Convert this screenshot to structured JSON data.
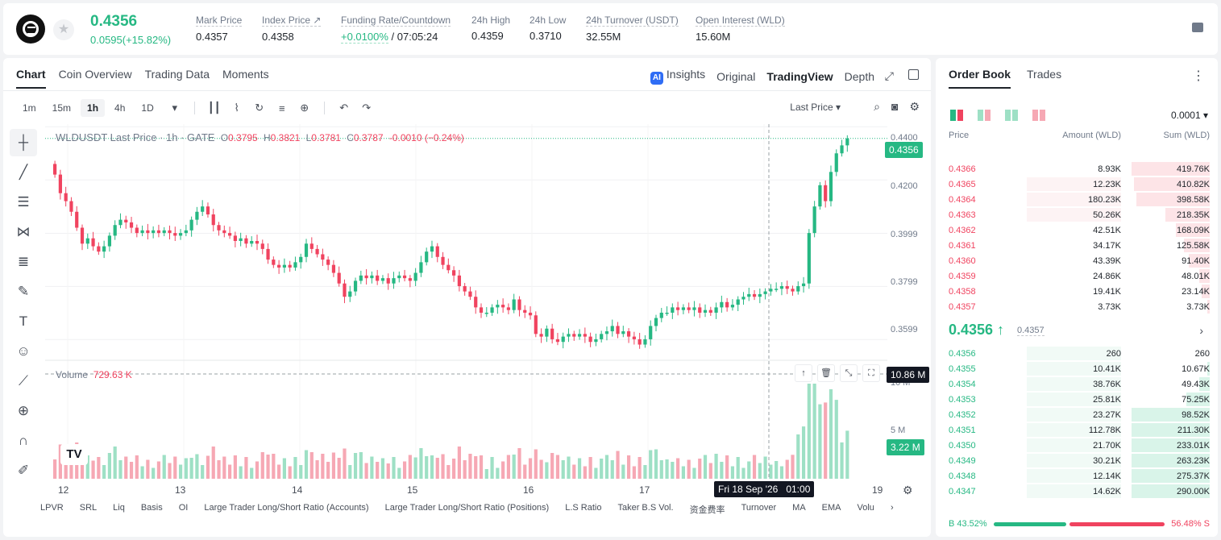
{
  "header": {
    "price": "0.4356",
    "change": "0.0595(+15.82%)",
    "stats": [
      {
        "label": "Mark Price",
        "value": "0.4357"
      },
      {
        "label": "Index Price ↗",
        "value": "0.4358"
      },
      {
        "label": "Funding Rate/Countdown",
        "value_green": "+0.0100%",
        "value": " / 07:05:24"
      },
      {
        "label": "24h High",
        "value": "0.4359"
      },
      {
        "label": "24h Low",
        "value": "0.3710"
      },
      {
        "label": "24h Turnover (USDT)",
        "value": "32.55M"
      },
      {
        "label": "Open Interest (WLD)",
        "value": "15.60M"
      }
    ]
  },
  "chart_tabs": [
    "Chart",
    "Coin Overview",
    "Trading Data",
    "Moments"
  ],
  "view_tabs": {
    "insights": "Insights",
    "original": "Original",
    "tradingview": "TradingView",
    "depth": "Depth"
  },
  "intervals": [
    "1m",
    "15m",
    "1h",
    "4h",
    "1D"
  ],
  "price_source": "Last Price ▾",
  "legend": {
    "symbol": "WLDUSDT Last Price · 1h · GATE",
    "o": "0.3795",
    "h": "0.3821",
    "l": "0.3781",
    "c": "0.3787",
    "chg": "-0.0010 (−0.24%)"
  },
  "volume_legend": {
    "label": "Volume",
    "value": "729.63 K"
  },
  "price_axis": [
    "0.4400",
    "0.4200",
    "0.3999",
    "0.3799",
    "0.3599"
  ],
  "price_tag": "0.4356",
  "volume_axis": [
    "10 M",
    "5 M"
  ],
  "volume_tag": "3.22 M",
  "crosshair_volume_tag": "10.86 M",
  "time_axis": [
    "12",
    "13",
    "14",
    "15",
    "16",
    "17",
    "19"
  ],
  "crosshair_time": "Fri 18 Sep '26   01:00",
  "indicators": [
    "LPVR",
    "SRL",
    "Liq",
    "Basis",
    "OI",
    "Large Trader Long/Short Ratio (Accounts)",
    "Large Trader Long/Short Ratio (Positions)",
    "L.S Ratio",
    "Taker B.S Vol.",
    "资金费率",
    "Turnover",
    "MA",
    "EMA",
    "Volu"
  ],
  "orderbook": {
    "tabs": [
      "Order Book",
      "Trades"
    ],
    "precision": "0.0001 ▾",
    "headers": {
      "price": "Price",
      "amount": "Amount (WLD)",
      "sum": "Sum (WLD)"
    },
    "asks": [
      {
        "price": "0.4366",
        "amount": "8.93K",
        "sum": "419.76K",
        "depth": 0.3,
        "amt_depth": 0.0
      },
      {
        "price": "0.4365",
        "amount": "12.23K",
        "sum": "410.82K",
        "depth": 0.29,
        "amt_depth": 0.36
      },
      {
        "price": "0.4364",
        "amount": "180.23K",
        "sum": "398.58K",
        "depth": 0.28,
        "amt_depth": 0.36
      },
      {
        "price": "0.4363",
        "amount": "50.26K",
        "sum": "218.35K",
        "depth": 0.17,
        "amt_depth": 0.36
      },
      {
        "price": "0.4362",
        "amount": "42.51K",
        "sum": "168.09K",
        "depth": 0.13,
        "amt_depth": 0.0
      },
      {
        "price": "0.4361",
        "amount": "34.17K",
        "sum": "125.58K",
        "depth": 0.1,
        "amt_depth": 0.0
      },
      {
        "price": "0.4360",
        "amount": "43.39K",
        "sum": "91.40K",
        "depth": 0.08,
        "amt_depth": 0.0
      },
      {
        "price": "0.4359",
        "amount": "24.86K",
        "sum": "48.01K",
        "depth": 0.04,
        "amt_depth": 0.0
      },
      {
        "price": "0.4358",
        "amount": "19.41K",
        "sum": "23.14K",
        "depth": 0.03,
        "amt_depth": 0.0
      },
      {
        "price": "0.4357",
        "amount": "3.73K",
        "sum": "3.73K",
        "depth": 0.01,
        "amt_depth": 0.0
      }
    ],
    "mid_price": "0.4356 ↑",
    "mid_mark": "0.4357",
    "bids": [
      {
        "price": "0.4356",
        "amount": "260",
        "sum": "260",
        "depth": 0.0,
        "amt_depth": 0.36
      },
      {
        "price": "0.4355",
        "amount": "10.41K",
        "sum": "10.67K",
        "depth": 0.01,
        "amt_depth": 0.36
      },
      {
        "price": "0.4354",
        "amount": "38.76K",
        "sum": "49.43K",
        "depth": 0.04,
        "amt_depth": 0.36
      },
      {
        "price": "0.4353",
        "amount": "25.81K",
        "sum": "75.25K",
        "depth": 0.09,
        "amt_depth": 0.36
      },
      {
        "price": "0.4352",
        "amount": "23.27K",
        "sum": "98.52K",
        "depth": 0.3,
        "amt_depth": 0.36
      },
      {
        "price": "0.4351",
        "amount": "112.78K",
        "sum": "211.30K",
        "depth": 0.3,
        "amt_depth": 0.36
      },
      {
        "price": "0.4350",
        "amount": "21.70K",
        "sum": "233.01K",
        "depth": 0.3,
        "amt_depth": 0.36
      },
      {
        "price": "0.4349",
        "amount": "30.21K",
        "sum": "263.23K",
        "depth": 0.3,
        "amt_depth": 0.36
      },
      {
        "price": "0.4348",
        "amount": "12.14K",
        "sum": "275.37K",
        "depth": 0.3,
        "amt_depth": 0.36
      },
      {
        "price": "0.4347",
        "amount": "14.62K",
        "sum": "290.00K",
        "depth": 0.3,
        "amt_depth": 0.36
      }
    ],
    "buy_ratio": "B 43.52%",
    "sell_ratio": "56.48% S"
  },
  "colors": {
    "up": "#26b883",
    "down": "#f0435f",
    "up_light": "#9ee0c5",
    "down_light": "#f6a8b4"
  },
  "chart_data": {
    "type": "candlestick",
    "ylim": [
      0.353,
      0.441
    ],
    "closes": [
      0.422,
      0.415,
      0.412,
      0.408,
      0.402,
      0.396,
      0.398,
      0.395,
      0.393,
      0.395,
      0.399,
      0.403,
      0.405,
      0.404,
      0.402,
      0.4,
      0.401,
      0.4,
      0.401,
      0.4,
      0.401,
      0.4,
      0.399,
      0.4,
      0.401,
      0.405,
      0.408,
      0.41,
      0.407,
      0.403,
      0.401,
      0.4,
      0.399,
      0.397,
      0.398,
      0.396,
      0.397,
      0.396,
      0.394,
      0.39,
      0.388,
      0.387,
      0.388,
      0.387,
      0.389,
      0.391,
      0.396,
      0.394,
      0.392,
      0.39,
      0.388,
      0.385,
      0.381,
      0.376,
      0.378,
      0.382,
      0.384,
      0.383,
      0.384,
      0.382,
      0.383,
      0.381,
      0.383,
      0.384,
      0.383,
      0.382,
      0.385,
      0.389,
      0.393,
      0.395,
      0.391,
      0.388,
      0.386,
      0.384,
      0.38,
      0.378,
      0.376,
      0.372,
      0.37,
      0.37,
      0.372,
      0.373,
      0.372,
      0.371,
      0.375,
      0.371,
      0.37,
      0.369,
      0.362,
      0.361,
      0.364,
      0.36,
      0.359,
      0.361,
      0.362,
      0.361,
      0.362,
      0.361,
      0.359,
      0.36,
      0.362,
      0.363,
      0.365,
      0.362,
      0.363,
      0.361,
      0.36,
      0.358,
      0.36,
      0.365,
      0.368,
      0.37,
      0.37,
      0.372,
      0.371,
      0.372,
      0.371,
      0.372,
      0.37,
      0.371,
      0.37,
      0.372,
      0.374,
      0.372,
      0.373,
      0.375,
      0.376,
      0.377,
      0.376,
      0.377,
      0.378,
      0.379,
      0.379,
      0.38,
      0.379,
      0.378,
      0.38,
      0.381,
      0.4,
      0.41,
      0.418,
      0.412,
      0.423,
      0.43,
      0.433,
      0.4356
    ]
  }
}
